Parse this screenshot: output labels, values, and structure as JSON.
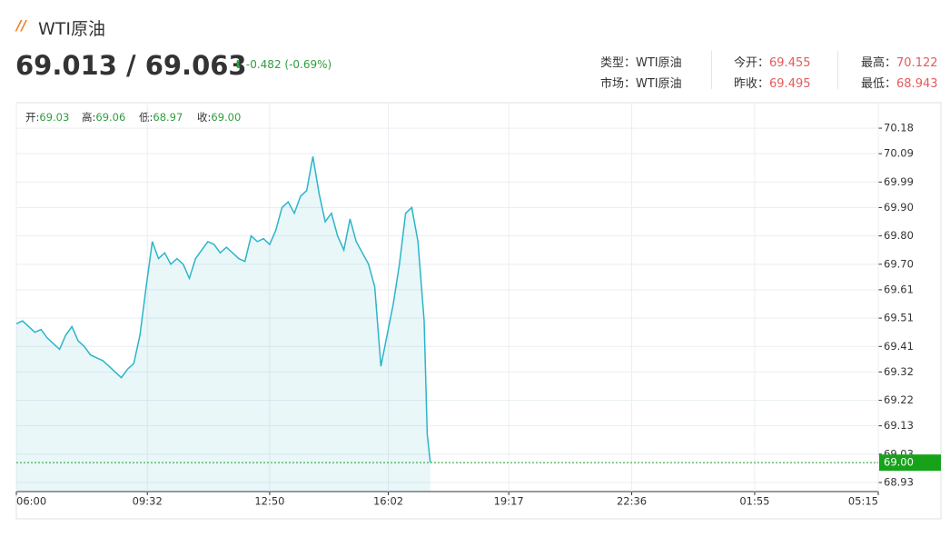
{
  "header": {
    "title": "WTI原油",
    "price": "69.013 / 69.063",
    "change": "-0.482 (-0.69%)"
  },
  "info": [
    [
      {
        "label": "类型：",
        "value": "WTI原油"
      },
      {
        "label": "今开：",
        "value": "69.455"
      },
      {
        "label": "最高：",
        "value": "70.122"
      }
    ],
    [
      {
        "label": "市场：",
        "value": "WTI原油"
      },
      {
        "label": "昨收：",
        "value": "69.495"
      },
      {
        "label": "最低：",
        "value": "68.943"
      }
    ]
  ],
  "ohlc": [
    {
      "label": "开:",
      "value": "69.03"
    },
    {
      "label": "高:",
      "value": "69.06"
    },
    {
      "label": "低:",
      "value": "68.97"
    },
    {
      "label": "收:",
      "value": "69.00"
    }
  ],
  "chart_data": {
    "type": "line",
    "color": "#2bb5c9",
    "grid": true,
    "x": [
      360,
      370,
      380,
      390,
      400,
      410,
      420,
      430,
      440,
      450,
      460,
      470,
      480,
      490,
      500,
      510,
      520,
      530,
      540,
      550,
      560,
      570,
      580,
      590,
      600,
      610,
      620,
      630,
      640,
      650,
      660,
      670,
      680,
      690,
      700,
      710,
      720,
      730,
      740,
      750,
      760,
      770,
      780,
      790,
      800,
      810,
      820,
      830,
      840,
      850,
      860,
      870,
      880,
      890,
      900,
      910,
      920,
      930,
      940,
      950,
      960,
      970,
      980,
      990,
      1000,
      1010,
      1020,
      1025,
      1030
    ],
    "values": [
      69.49,
      69.5,
      69.48,
      69.46,
      69.47,
      69.44,
      69.42,
      69.4,
      69.45,
      69.48,
      69.43,
      69.41,
      69.38,
      69.37,
      69.36,
      69.34,
      69.32,
      69.3,
      69.33,
      69.35,
      69.45,
      69.62,
      69.78,
      69.72,
      69.74,
      69.7,
      69.72,
      69.7,
      69.65,
      69.72,
      69.75,
      69.78,
      69.77,
      69.74,
      69.76,
      69.74,
      69.72,
      69.71,
      69.8,
      69.78,
      69.79,
      69.77,
      69.82,
      69.9,
      69.92,
      69.88,
      69.94,
      69.96,
      70.08,
      69.95,
      69.85,
      69.88,
      69.8,
      69.75,
      69.86,
      69.78,
      69.74,
      69.7,
      69.62,
      69.34,
      69.45,
      69.56,
      69.7,
      69.88,
      69.9,
      69.78,
      69.5,
      69.1,
      69.0
    ],
    "xlim": [
      360,
      1755
    ],
    "xticks": [
      {
        "value": 360,
        "label": "06:00"
      },
      {
        "value": 572,
        "label": "09:32"
      },
      {
        "value": 770,
        "label": "12:50"
      },
      {
        "value": 962,
        "label": "16:02"
      },
      {
        "value": 1157,
        "label": "19:17"
      },
      {
        "value": 1356,
        "label": "22:36"
      },
      {
        "value": 1555,
        "label": "01:55"
      },
      {
        "value": 1755,
        "label": "05:15"
      }
    ],
    "ylim": [
      68.898,
      70.27
    ],
    "yticks": [
      70.18,
      70.09,
      69.99,
      {
        "value": 69.9,
        "label": "69.90"
      },
      {
        "value": 69.8,
        "label": "69.80"
      },
      {
        "value": 69.7,
        "label": "69.70"
      },
      69.61,
      69.51,
      69.41,
      69.32,
      69.22,
      69.13,
      69.03,
      68.93
    ],
    "last_price": {
      "value": 69.0,
      "label": "69.00"
    }
  }
}
